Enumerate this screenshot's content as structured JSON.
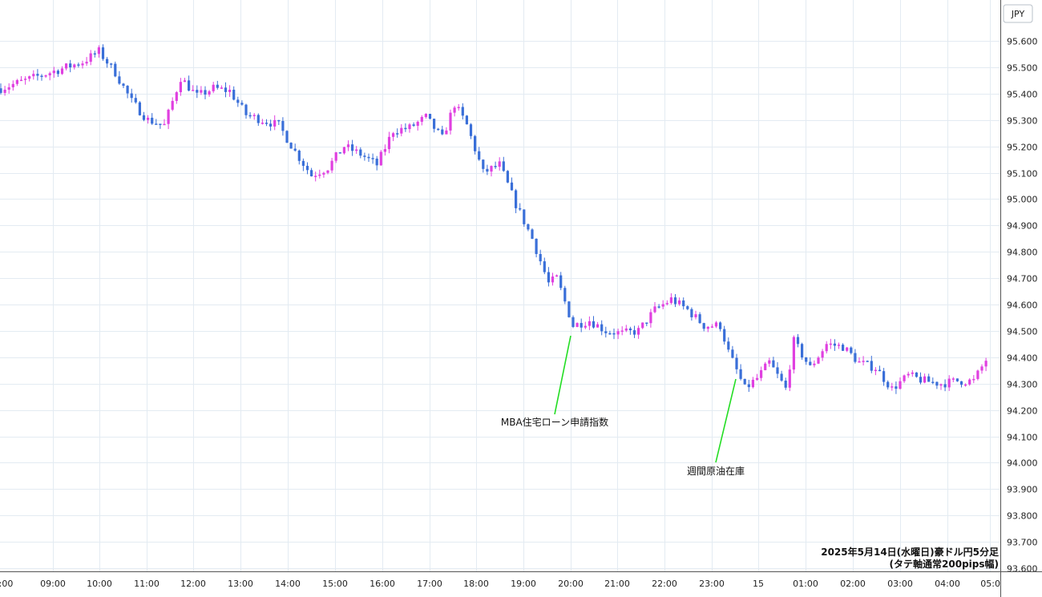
{
  "chart_data": {
    "type": "candlestick",
    "currency": "JPY",
    "caption": [
      "2025年5月14日(水曜日)豪ドル円5分足",
      "(タテ軸通常200pips幅)"
    ],
    "ylim": [
      93.6,
      95.65
    ],
    "y_ticks": [
      "95.600",
      "95.500",
      "95.400",
      "95.300",
      "95.200",
      "95.100",
      "95.000",
      "94.900",
      "94.800",
      "94.700",
      "94.600",
      "94.500",
      "94.400",
      "94.300",
      "94.200",
      "94.100",
      "94.000",
      "93.900",
      "93.800",
      "93.700",
      "93.600"
    ],
    "x_ticks": [
      "8:00",
      "09:00",
      "10:00",
      "11:00",
      "12:00",
      "13:00",
      "14:00",
      "15:00",
      "16:00",
      "17:00",
      "18:00",
      "19:00",
      "20:00",
      "21:00",
      "22:00",
      "23:00",
      "15",
      "01:00",
      "02:00",
      "03:00",
      "04:00",
      "05:0"
    ],
    "colors": {
      "up": "#e040e0",
      "down": "#3a6fd8",
      "grid": "#e3ebf2",
      "annotation_line": "#22dd22"
    },
    "anchors": [
      [
        0,
        95.42
      ],
      [
        12,
        95.48
      ],
      [
        20,
        95.52
      ],
      [
        24,
        95.56
      ],
      [
        28,
        95.48
      ],
      [
        32,
        95.37
      ],
      [
        36,
        95.3
      ],
      [
        40,
        95.28
      ],
      [
        44,
        95.46
      ],
      [
        48,
        95.39
      ],
      [
        52,
        95.42
      ],
      [
        56,
        95.41
      ],
      [
        60,
        95.32
      ],
      [
        64,
        95.3
      ],
      [
        68,
        95.28
      ],
      [
        72,
        95.18
      ],
      [
        76,
        95.09
      ],
      [
        80,
        95.12
      ],
      [
        84,
        95.2
      ],
      [
        88,
        95.17
      ],
      [
        92,
        95.13
      ],
      [
        96,
        95.26
      ],
      [
        100,
        95.27
      ],
      [
        104,
        95.31
      ],
      [
        108,
        95.23
      ],
      [
        111,
        95.36
      ],
      [
        114,
        95.28
      ],
      [
        118,
        95.1
      ],
      [
        122,
        95.13
      ],
      [
        126,
        94.98
      ],
      [
        130,
        94.85
      ],
      [
        134,
        94.68
      ],
      [
        136,
        94.7
      ],
      [
        140,
        94.52
      ],
      [
        144,
        94.54
      ],
      [
        148,
        94.5
      ],
      [
        152,
        94.49
      ],
      [
        156,
        94.5
      ],
      [
        160,
        94.58
      ],
      [
        164,
        94.62
      ],
      [
        168,
        94.58
      ],
      [
        172,
        94.52
      ],
      [
        176,
        94.52
      ],
      [
        178,
        94.42
      ],
      [
        182,
        94.28
      ],
      [
        185,
        94.32
      ],
      [
        188,
        94.38
      ],
      [
        192,
        94.28
      ],
      [
        194,
        94.46
      ],
      [
        198,
        94.36
      ],
      [
        202,
        94.45
      ],
      [
        206,
        94.44
      ],
      [
        210,
        94.38
      ],
      [
        214,
        94.36
      ],
      [
        218,
        94.28
      ],
      [
        222,
        94.33
      ],
      [
        226,
        94.31
      ],
      [
        230,
        94.3
      ],
      [
        234,
        94.31
      ],
      [
        238,
        94.31
      ],
      [
        241,
        94.39
      ]
    ],
    "annotations": [
      {
        "label": "MBA住宅ローン申請指数"
      },
      {
        "label": "週間原油在庫"
      }
    ]
  }
}
